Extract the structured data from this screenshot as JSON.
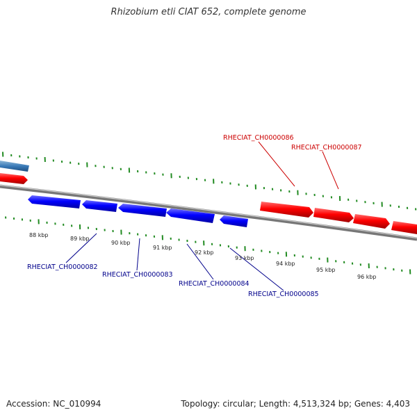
{
  "title": "Rhizobium etli CIAT 652, complete genome",
  "footer": {
    "accession": "Accession: NC_010994",
    "summary": "Topology: circular; Length: 4,513,324 bp; Genes: 4,403"
  },
  "colors": {
    "forward_gene": "#ff0000",
    "reverse_gene": "#0000ff",
    "forward_label": "#cc0000",
    "reverse_label": "#00008b",
    "tick": "#228b22",
    "backbone": "#808080"
  },
  "scale_labels": [
    "88 kbp",
    "89 kbp",
    "90 kbp",
    "91 kbp",
    "92 kbp",
    "93 kbp",
    "94 kbp",
    "95 kbp",
    "96 kbp"
  ],
  "genes": [
    {
      "label": "RHECIAT_CH0000082",
      "strand": "reverse"
    },
    {
      "label": "RHECIAT_CH0000083",
      "strand": "reverse"
    },
    {
      "label": "RHECIAT_CH0000084",
      "strand": "reverse"
    },
    {
      "label": "RHECIAT_CH0000085",
      "strand": "reverse"
    },
    {
      "label": "RHECIAT_CH0000086",
      "strand": "forward"
    },
    {
      "label": "RHECIAT_CH0000087",
      "strand": "forward"
    }
  ]
}
